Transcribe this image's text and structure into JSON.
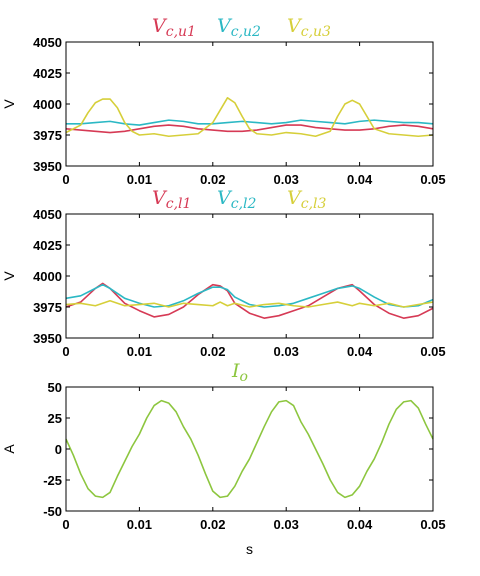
{
  "chart_data": [
    {
      "type": "line",
      "ylabel": "V",
      "xlabel": "",
      "xlim": [
        0,
        0.05
      ],
      "ylim": [
        3950,
        4050
      ],
      "xticks": [
        "0",
        "0.01",
        "0.02",
        "0.03",
        "0.04",
        "0.05"
      ],
      "yticks": [
        "4050",
        "4025",
        "4000",
        "3975",
        "3950"
      ],
      "grid": false,
      "legend_position": "top",
      "series": [
        {
          "name": "V_{c,u1}",
          "legend_main": "V",
          "legend_sub": "c,u1",
          "color": "#d63a55",
          "x": [
            0,
            0.002,
            0.004,
            0.006,
            0.008,
            0.01,
            0.012,
            0.014,
            0.016,
            0.018,
            0.02,
            0.022,
            0.024,
            0.026,
            0.028,
            0.03,
            0.032,
            0.034,
            0.036,
            0.038,
            0.04,
            0.042,
            0.044,
            0.046,
            0.048,
            0.05
          ],
          "values": [
            3980,
            3979,
            3978,
            3977,
            3978,
            3980,
            3982,
            3983,
            3982,
            3980,
            3979,
            3978,
            3978,
            3979,
            3981,
            3983,
            3983,
            3981,
            3980,
            3979,
            3979,
            3980,
            3982,
            3983,
            3982,
            3980
          ]
        },
        {
          "name": "V_{c,u2}",
          "legend_main": "V",
          "legend_sub": "c,u2",
          "color": "#2bb8c4",
          "x": [
            0,
            0.002,
            0.004,
            0.006,
            0.008,
            0.01,
            0.012,
            0.014,
            0.016,
            0.018,
            0.02,
            0.022,
            0.024,
            0.026,
            0.028,
            0.03,
            0.032,
            0.034,
            0.036,
            0.038,
            0.04,
            0.042,
            0.044,
            0.046,
            0.048,
            0.05
          ],
          "values": [
            3984,
            3984,
            3985,
            3986,
            3984,
            3983,
            3985,
            3987,
            3986,
            3984,
            3984,
            3985,
            3986,
            3985,
            3984,
            3985,
            3987,
            3986,
            3985,
            3984,
            3986,
            3987,
            3986,
            3985,
            3985,
            3984
          ]
        },
        {
          "name": "V_{c,u3}",
          "legend_main": "V",
          "legend_sub": "c,u3",
          "color": "#d6cf3a",
          "x": [
            0,
            0.002,
            0.003,
            0.004,
            0.005,
            0.006,
            0.007,
            0.008,
            0.009,
            0.01,
            0.012,
            0.014,
            0.016,
            0.018,
            0.02,
            0.021,
            0.022,
            0.023,
            0.024,
            0.025,
            0.026,
            0.028,
            0.03,
            0.032,
            0.034,
            0.036,
            0.037,
            0.038,
            0.039,
            0.04,
            0.041,
            0.042,
            0.044,
            0.046,
            0.048,
            0.05
          ],
          "values": [
            3977,
            3983,
            3993,
            4001,
            4004,
            4004,
            3997,
            3985,
            3978,
            3975,
            3976,
            3974,
            3975,
            3976,
            3985,
            3995,
            4005,
            4001,
            3990,
            3980,
            3976,
            3975,
            3977,
            3976,
            3974,
            3978,
            3990,
            4000,
            4003,
            4000,
            3990,
            3980,
            3976,
            3975,
            3974,
            3975
          ]
        }
      ]
    },
    {
      "type": "line",
      "ylabel": "V",
      "xlabel": "",
      "xlim": [
        0,
        0.05
      ],
      "ylim": [
        3950,
        4050
      ],
      "xticks": [
        "0",
        "0.01",
        "0.02",
        "0.03",
        "0.04",
        "0.05"
      ],
      "yticks": [
        "4050",
        "4025",
        "4000",
        "3975",
        "3950"
      ],
      "grid": false,
      "legend_position": "top",
      "series": [
        {
          "name": "V_{c,l1}",
          "legend_main": "V",
          "legend_sub": "c,l1",
          "color": "#d63a55",
          "x": [
            0,
            0.002,
            0.004,
            0.005,
            0.006,
            0.008,
            0.01,
            0.012,
            0.014,
            0.016,
            0.018,
            0.02,
            0.021,
            0.022,
            0.023,
            0.025,
            0.027,
            0.029,
            0.031,
            0.033,
            0.035,
            0.037,
            0.039,
            0.04,
            0.042,
            0.044,
            0.046,
            0.048,
            0.05
          ],
          "values": [
            3975,
            3979,
            3990,
            3994,
            3990,
            3978,
            3972,
            3967,
            3969,
            3975,
            3985,
            3993,
            3992,
            3988,
            3978,
            3970,
            3966,
            3968,
            3972,
            3976,
            3983,
            3990,
            3993,
            3988,
            3977,
            3970,
            3966,
            3968,
            3974
          ],
          "pixel_note": ""
        },
        {
          "name": "V_{c,l2}",
          "legend_main": "V",
          "legend_sub": "c,l2",
          "color": "#2bb8c4",
          "x": [
            0,
            0.002,
            0.004,
            0.005,
            0.006,
            0.008,
            0.01,
            0.012,
            0.014,
            0.016,
            0.018,
            0.02,
            0.021,
            0.022,
            0.023,
            0.025,
            0.027,
            0.029,
            0.031,
            0.033,
            0.035,
            0.037,
            0.039,
            0.04,
            0.042,
            0.044,
            0.046,
            0.048,
            0.05
          ],
          "values": [
            3982,
            3984,
            3990,
            3993,
            3990,
            3982,
            3978,
            3975,
            3976,
            3980,
            3986,
            3991,
            3991,
            3989,
            3983,
            3977,
            3975,
            3976,
            3978,
            3982,
            3986,
            3990,
            3992,
            3990,
            3983,
            3977,
            3975,
            3976,
            3981
          ]
        },
        {
          "name": "V_{c,l3}",
          "legend_main": "V",
          "legend_sub": "c,l3",
          "color": "#d6cf3a",
          "x": [
            0,
            0.002,
            0.004,
            0.005,
            0.006,
            0.008,
            0.01,
            0.012,
            0.014,
            0.016,
            0.018,
            0.02,
            0.021,
            0.022,
            0.023,
            0.025,
            0.027,
            0.029,
            0.031,
            0.033,
            0.035,
            0.037,
            0.039,
            0.04,
            0.042,
            0.044,
            0.046,
            0.048,
            0.05
          ],
          "values": [
            3977,
            3978,
            3976,
            3978,
            3980,
            3976,
            3977,
            3978,
            3975,
            3978,
            3977,
            3976,
            3979,
            3976,
            3978,
            3975,
            3977,
            3978,
            3976,
            3975,
            3977,
            3979,
            3976,
            3978,
            3976,
            3978,
            3975,
            3977,
            3979
          ]
        }
      ]
    },
    {
      "type": "line",
      "ylabel": "A",
      "xlabel": "s",
      "xlim": [
        0,
        0.05
      ],
      "ylim": [
        -50,
        50
      ],
      "xticks": [
        "0",
        "0.01",
        "0.02",
        "0.03",
        "0.04",
        "0.05"
      ],
      "yticks": [
        "50",
        "25",
        "0",
        "-25",
        "-50"
      ],
      "grid": false,
      "legend_position": "top",
      "series": [
        {
          "name": "I_o",
          "legend_main": "I",
          "legend_sub": "o",
          "color": "#8dc63f",
          "x": [
            0,
            0.001,
            0.002,
            0.003,
            0.004,
            0.005,
            0.006,
            0.007,
            0.008,
            0.009,
            0.01,
            0.011,
            0.012,
            0.013,
            0.014,
            0.015,
            0.016,
            0.017,
            0.018,
            0.019,
            0.02,
            0.021,
            0.022,
            0.023,
            0.024,
            0.025,
            0.026,
            0.027,
            0.028,
            0.029,
            0.03,
            0.031,
            0.032,
            0.033,
            0.034,
            0.035,
            0.036,
            0.037,
            0.038,
            0.039,
            0.04,
            0.041,
            0.042,
            0.043,
            0.044,
            0.045,
            0.046,
            0.047,
            0.048,
            0.049,
            0.05
          ],
          "values": [
            8,
            -5,
            -20,
            -32,
            -38,
            -39,
            -35,
            -22,
            -10,
            2,
            12,
            25,
            35,
            39,
            37,
            30,
            18,
            8,
            -5,
            -20,
            -34,
            -39,
            -38,
            -30,
            -18,
            -8,
            5,
            18,
            30,
            38,
            39,
            35,
            22,
            12,
            0,
            -12,
            -25,
            -35,
            -39,
            -37,
            -30,
            -18,
            -8,
            5,
            20,
            32,
            38,
            39,
            33,
            20,
            8
          ]
        }
      ]
    }
  ]
}
